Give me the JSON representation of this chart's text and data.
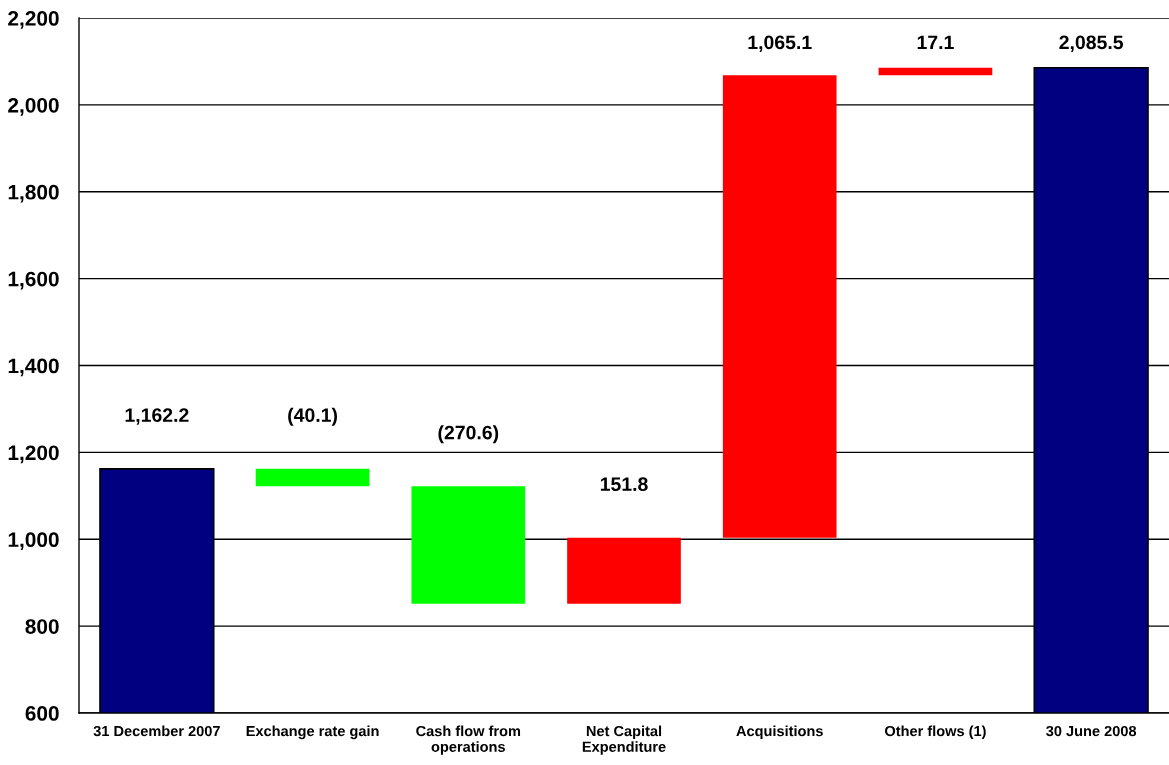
{
  "chart_data": {
    "type": "bar",
    "categories": [
      "31 December 2007",
      "Exchange rate gain",
      "Cash flow from\noperations",
      "Net Capital\nExpenditure",
      "Acquisitions",
      "Other flows (1)",
      "30 June 2008"
    ],
    "values": [
      1162.2,
      -40.1,
      -270.6,
      151.8,
      1065.1,
      17.1,
      2085.5
    ],
    "base": [
      null,
      1162.2,
      1122.1,
      851.5,
      1003.3,
      2068.4,
      null
    ],
    "colors": [
      "#000080",
      "#00ff00",
      "#00ff00",
      "#ff0000",
      "#ff0000",
      "#ff0000",
      "#000080"
    ],
    "value_labels": [
      "1,162.2",
      "(40.1)",
      "(270.6)",
      "151.8",
      "1,065.1",
      "17.1",
      "2,085.5"
    ],
    "ylim": [
      600,
      2200
    ],
    "yticks": [
      600,
      800,
      {
        "value": 1000,
        "label": "1,000"
      },
      {
        "value": 1200,
        "label": "1,200"
      },
      {
        "value": 1400,
        "label": "1,400"
      },
      {
        "value": 1600,
        "label": "1,600"
      },
      {
        "value": 1800,
        "label": "1,800"
      },
      {
        "value": 2000,
        "label": "2,000"
      },
      {
        "value": 2200,
        "label": "2,200"
      }
    ],
    "grid": "y"
  }
}
